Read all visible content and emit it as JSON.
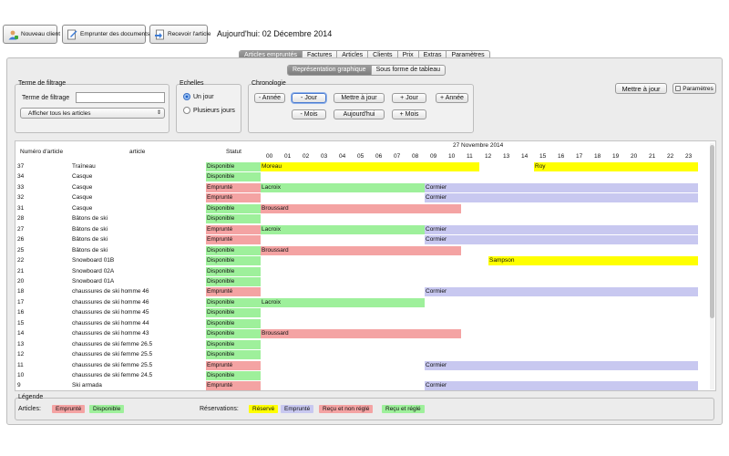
{
  "toolbar": {
    "new_client": "Nouveau client",
    "borrow_docs": "Emprunter des documents",
    "receive_article": "Recevoir l'article",
    "today_label": "Aujourd'hui: 02 Décembre 2014"
  },
  "main_tabs": [
    "Articles empruntés",
    "Factures",
    "Articles",
    "Clients",
    "Prix",
    "Extras",
    "Paramètres"
  ],
  "sub_tabs": [
    "Représentation graphique",
    "Sous forme de tableau"
  ],
  "filter": {
    "group_title": "Terme de filtrage",
    "field_label": "Terme de filtrage",
    "value": "",
    "select_value": "Afficher tous les articles"
  },
  "scales": {
    "title": "Echelles",
    "option1": "Un jour",
    "option2": "Plusieurs jours",
    "selected": "Un jour"
  },
  "chrono": {
    "title": "Chronologie",
    "minus_year": "- Année",
    "minus_day": "- Jour",
    "update": "Mettre à jour",
    "plus_day": "+ Jour",
    "plus_year": "+ Année",
    "minus_month": "- Mois",
    "today": "Aujourd'hui",
    "plus_month": "+ Mois"
  },
  "right_buttons": {
    "update": "Mettre à jour",
    "settings": "Paramètres"
  },
  "grid": {
    "col_number": "Numéro d'article",
    "col_article": "article",
    "col_status": "Statut",
    "date_label": "27 Novembre 2014",
    "hours": [
      "00",
      "01",
      "02",
      "03",
      "04",
      "05",
      "06",
      "07",
      "08",
      "09",
      "10",
      "11",
      "12",
      "13",
      "14",
      "15",
      "16",
      "17",
      "18",
      "19",
      "20",
      "21",
      "22",
      "23"
    ],
    "rows": [
      {
        "num": "37",
        "name": "Traîneau",
        "status": "Disponible",
        "bars": [
          {
            "label": "Moreau",
            "start": 0,
            "end": 12,
            "kind": "reserve"
          },
          {
            "label": "Roy",
            "start": 15,
            "end": 24,
            "kind": "reserve"
          }
        ]
      },
      {
        "num": "34",
        "name": "Casque",
        "status": "Disponible",
        "bars": []
      },
      {
        "num": "33",
        "name": "Casque",
        "status": "Emprunté",
        "bars": [
          {
            "label": "Lacroix",
            "start": 0,
            "end": 9,
            "kind": "paid"
          },
          {
            "label": "Cormier",
            "start": 9,
            "end": 24,
            "kind": "emprunte"
          }
        ]
      },
      {
        "num": "32",
        "name": "Casque",
        "status": "Emprunté",
        "bars": [
          {
            "label": "Cormier",
            "start": 9,
            "end": 24,
            "kind": "emprunte"
          }
        ]
      },
      {
        "num": "31",
        "name": "Casque",
        "status": "Disponible",
        "bars": [
          {
            "label": "Broussard",
            "start": 0,
            "end": 11,
            "kind": "unpaid"
          }
        ]
      },
      {
        "num": "28",
        "name": "Bâtons de ski",
        "status": "Disponible",
        "bars": []
      },
      {
        "num": "27",
        "name": "Bâtons de ski",
        "status": "Emprunté",
        "bars": [
          {
            "label": "Lacroix",
            "start": 0,
            "end": 9,
            "kind": "paid"
          },
          {
            "label": "Cormier",
            "start": 9,
            "end": 24,
            "kind": "emprunte"
          }
        ]
      },
      {
        "num": "26",
        "name": "Bâtons de ski",
        "status": "Emprunté",
        "bars": [
          {
            "label": "Cormier",
            "start": 9,
            "end": 24,
            "kind": "emprunte"
          }
        ]
      },
      {
        "num": "25",
        "name": "Bâtons de ski",
        "status": "Disponible",
        "bars": [
          {
            "label": "Broussard",
            "start": 0,
            "end": 11,
            "kind": "unpaid"
          }
        ]
      },
      {
        "num": "22",
        "name": "Snowboard 01B",
        "status": "Disponible",
        "bars": [
          {
            "label": "Sampson",
            "start": 12.5,
            "end": 24,
            "kind": "reserve"
          }
        ]
      },
      {
        "num": "21",
        "name": "Snowboard 02A",
        "status": "Disponible",
        "bars": []
      },
      {
        "num": "20",
        "name": "Snowboard 01A",
        "status": "Disponible",
        "bars": []
      },
      {
        "num": "18",
        "name": "chaussures de ski homme 46",
        "status": "Emprunté",
        "bars": [
          {
            "label": "Cormier",
            "start": 9,
            "end": 24,
            "kind": "emprunte"
          }
        ]
      },
      {
        "num": "17",
        "name": "chaussures de ski homme 46",
        "status": "Disponible",
        "bars": [
          {
            "label": "Lacroix",
            "start": 0,
            "end": 9,
            "kind": "paid"
          }
        ]
      },
      {
        "num": "16",
        "name": "chaussures de ski homme 45",
        "status": "Disponible",
        "bars": []
      },
      {
        "num": "15",
        "name": "chaussures de ski homme 44",
        "status": "Disponible",
        "bars": []
      },
      {
        "num": "14",
        "name": "chaussures de ski homme 43",
        "status": "Disponible",
        "bars": [
          {
            "label": "Broussard",
            "start": 0,
            "end": 11,
            "kind": "unpaid"
          }
        ]
      },
      {
        "num": "13",
        "name": "chaussures de ski femme 26.5",
        "status": "Disponible",
        "bars": []
      },
      {
        "num": "12",
        "name": "chaussures de ski femme 25.5",
        "status": "Disponible",
        "bars": []
      },
      {
        "num": "11",
        "name": "chaussures de ski femme 25.5",
        "status": "Emprunté",
        "bars": [
          {
            "label": "Cormier",
            "start": 9,
            "end": 24,
            "kind": "emprunte"
          }
        ]
      },
      {
        "num": "10",
        "name": "chaussures de ski femme 24.5",
        "status": "Disponible",
        "bars": []
      },
      {
        "num": "9",
        "name": "Ski armada",
        "status": "Emprunté",
        "bars": [
          {
            "label": "Cormier",
            "start": 9,
            "end": 24,
            "kind": "emprunte"
          }
        ]
      }
    ]
  },
  "legend": {
    "title": "Légende",
    "articles_label": "Articles:",
    "a1": "Emprunté",
    "a2": "Disponible",
    "reservations_label": "Réservations:",
    "r1": "Réservé",
    "r2": "Emprunté",
    "r3": "Reçu et non réglé",
    "r4": "Reçu et réglé"
  },
  "colors": {
    "emprunte_status": "#f4a3a3",
    "disponible_status": "#9ef09b",
    "reserve": "#ffff00",
    "emprunte_bar": "#c8c8f0",
    "unpaid": "#f4a3a3",
    "paid": "#9ef09b"
  }
}
